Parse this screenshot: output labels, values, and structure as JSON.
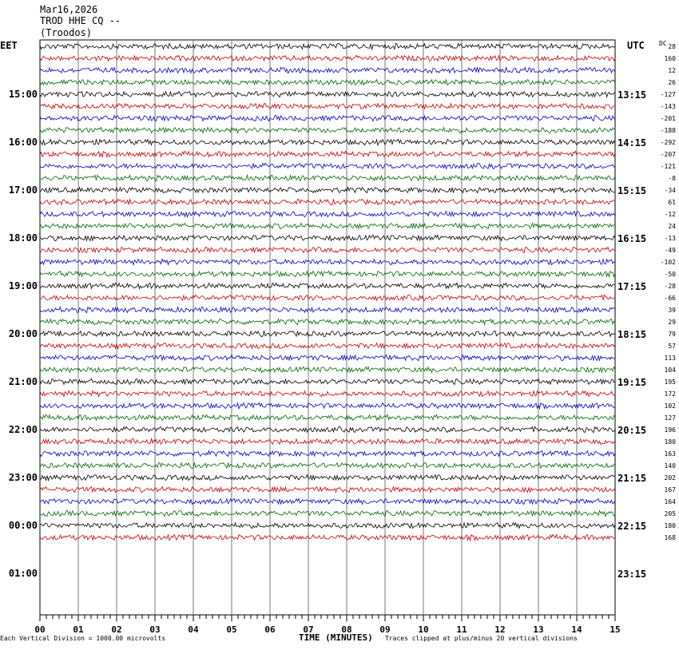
{
  "header": {
    "date": "Mar16,2026",
    "station": "TROD HHE CQ --",
    "location": "(Troodos)"
  },
  "labels": {
    "left_tz": "EET",
    "right_tz": "UTC",
    "dc": "DC"
  },
  "footer": {
    "left": "Each Vertical Division = 1000.00 microvolts",
    "middle": "TIME (MINUTES)",
    "right": "Traces clipped at plus/minus 20 vertical divisions"
  },
  "chart_data": {
    "type": "line",
    "xlabel": "TIME (MINUTES)",
    "x_ticks": [
      "00",
      "01",
      "02",
      "03",
      "04",
      "05",
      "06",
      "07",
      "08",
      "09",
      "10",
      "11",
      "12",
      "13",
      "14",
      "15"
    ],
    "xlim": [
      0,
      15
    ],
    "left_time_labels": [
      "15:00",
      "16:00",
      "17:00",
      "18:00",
      "19:00",
      "20:00",
      "21:00",
      "22:00",
      "23:00",
      "00:00",
      "01:00"
    ],
    "right_time_labels": [
      "13:15",
      "14:15",
      "15:15",
      "16:15",
      "17:15",
      "18:15",
      "19:15",
      "20:15",
      "21:15",
      "22:15",
      "23:15"
    ],
    "trace_colors": [
      "#000000",
      "#cc0000",
      "#0000cc",
      "#006600"
    ],
    "dc_offsets": [
      28,
      160,
      12,
      26,
      -127,
      -143,
      -201,
      -188,
      -292,
      -207,
      -121,
      -8,
      -34,
      61,
      -12,
      24,
      -13,
      -49,
      -102,
      -50,
      -28,
      -66,
      39,
      29,
      79,
      57,
      113,
      104,
      195,
      172,
      102,
      127,
      196,
      180,
      163,
      140,
      202,
      167,
      164,
      205,
      180,
      168
    ],
    "trace_count": 42
  }
}
